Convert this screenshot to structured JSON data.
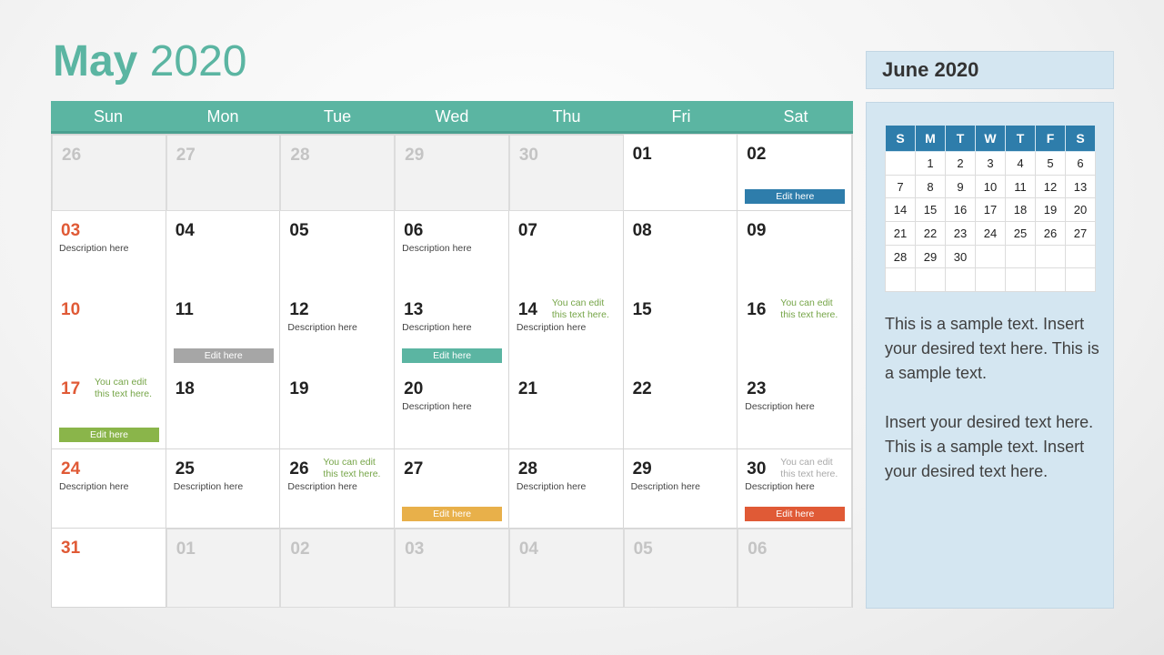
{
  "header": {
    "month": "May",
    "year": "2020"
  },
  "weekdays": [
    "Sun",
    "Mon",
    "Tue",
    "Wed",
    "Thu",
    "Fri",
    "Sat"
  ],
  "colors": {
    "accent": "#5bb5a2",
    "blue": "#2e7dab",
    "grey": "#a6a6a6",
    "green": "#8ab54a",
    "yellow": "#e8b04a",
    "red": "#e05a36"
  },
  "days": [
    {
      "day": "26",
      "muted": true
    },
    {
      "day": "27",
      "muted": true
    },
    {
      "day": "28",
      "muted": true
    },
    {
      "day": "29",
      "muted": true
    },
    {
      "day": "30",
      "muted": true
    },
    {
      "day": "01"
    },
    {
      "day": "02",
      "button": {
        "label": "Edit here",
        "color": "#2e7dab"
      }
    },
    {
      "day": "03",
      "red": true,
      "desc": "Description here"
    },
    {
      "day": "04"
    },
    {
      "day": "05"
    },
    {
      "day": "06",
      "desc": "Description here"
    },
    {
      "day": "07"
    },
    {
      "day": "08"
    },
    {
      "day": "09"
    },
    {
      "day": "10",
      "red": true
    },
    {
      "day": "11",
      "button": {
        "label": "Edit here",
        "color": "#a6a6a6"
      }
    },
    {
      "day": "12",
      "desc": "Description here"
    },
    {
      "day": "13",
      "desc": "Description here",
      "button": {
        "label": "Edit here",
        "color": "#5bb5a2"
      }
    },
    {
      "day": "14",
      "desc": "Description here",
      "note": "You can edit this text here."
    },
    {
      "day": "15"
    },
    {
      "day": "16",
      "note": "You can edit this text here."
    },
    {
      "day": "17",
      "red": true,
      "note": "You can edit this text here.",
      "button": {
        "label": "Edit here",
        "color": "#8ab54a"
      }
    },
    {
      "day": "18"
    },
    {
      "day": "19"
    },
    {
      "day": "20",
      "desc": "Description here"
    },
    {
      "day": "21"
    },
    {
      "day": "22"
    },
    {
      "day": "23",
      "desc": "Description here"
    },
    {
      "day": "24",
      "red": true,
      "desc": "Description here"
    },
    {
      "day": "25",
      "desc": "Description here"
    },
    {
      "day": "26",
      "desc": "Description here",
      "note": "You can edit this text here."
    },
    {
      "day": "27",
      "button": {
        "label": "Edit here",
        "color": "#e8b04a"
      }
    },
    {
      "day": "28",
      "desc": "Description here"
    },
    {
      "day": "29",
      "desc": "Description here"
    },
    {
      "day": "30",
      "desc": "Description here",
      "note": "You can edit this text here.",
      "noteGrey": true,
      "button": {
        "label": "Edit here",
        "color": "#e05a36"
      }
    },
    {
      "day": "31",
      "red": true
    },
    {
      "day": "01",
      "muted": true
    },
    {
      "day": "02",
      "muted": true
    },
    {
      "day": "03",
      "muted": true
    },
    {
      "day": "04",
      "muted": true
    },
    {
      "day": "05",
      "muted": true
    },
    {
      "day": "06",
      "muted": true
    }
  ],
  "side": {
    "title": "June 2020",
    "mini_headers": [
      "S",
      "M",
      "T",
      "W",
      "T",
      "F",
      "S"
    ],
    "mini_weeks": [
      [
        "",
        "1",
        "2",
        "3",
        "4",
        "5",
        "6"
      ],
      [
        "7",
        "8",
        "9",
        "10",
        "11",
        "12",
        "13"
      ],
      [
        "14",
        "15",
        "16",
        "17",
        "18",
        "19",
        "20"
      ],
      [
        "21",
        "22",
        "23",
        "24",
        "25",
        "26",
        "27"
      ],
      [
        "28",
        "29",
        "30",
        "",
        "",
        "",
        ""
      ],
      [
        "",
        "",
        "",
        "",
        "",
        "",
        ""
      ]
    ],
    "paragraphs": [
      "This is a sample text. Insert your desired text here. This is a sample text.",
      "Insert your desired text here. This is a sample text. Insert your desired text here."
    ]
  }
}
